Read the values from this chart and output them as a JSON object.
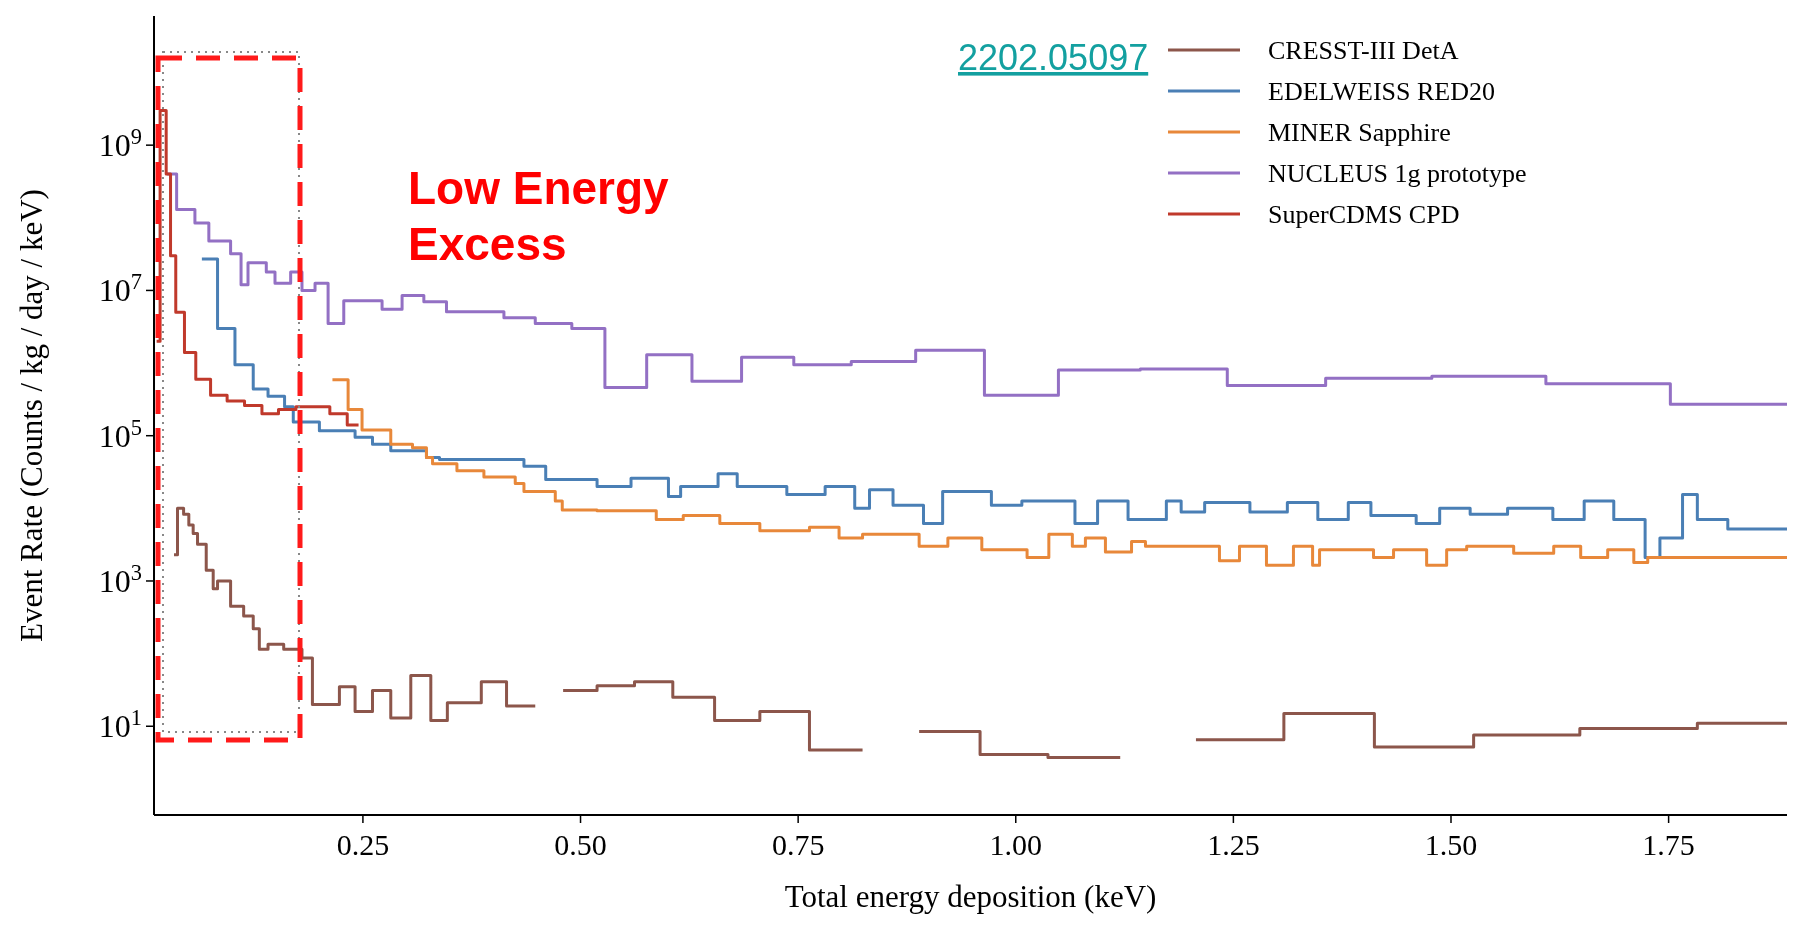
{
  "chart_data": {
    "type": "step",
    "xlabel": "Total energy deposition (keV)",
    "ylabel": "Event Rate (Counts / kg / day / keV)",
    "log": "y",
    "xlim": [
      0.01,
      1.886
    ],
    "ylim": [
      0.6,
      60000000000.0
    ],
    "xticks": [
      {
        "value": 0.25,
        "label": "0.25"
      },
      {
        "value": 0.5,
        "label": "0.50"
      },
      {
        "value": 0.75,
        "label": "0.75"
      },
      {
        "value": 1.0,
        "label": "1.00"
      },
      {
        "value": 1.25,
        "label": "1.25"
      },
      {
        "value": 1.5,
        "label": "1.50"
      },
      {
        "value": 1.75,
        "label": "1.75"
      }
    ],
    "yticks": [
      {
        "value": 10,
        "label": "10$^{1}$"
      },
      {
        "value": 1000,
        "label": "10$^{3}$"
      },
      {
        "value": 100000,
        "label": "10$^{5}$"
      },
      {
        "value": 10000000,
        "label": "10$^{7}$"
      },
      {
        "value": 1000000000,
        "label": "10$^{9}$"
      }
    ],
    "grid": false,
    "legend": "top right",
    "line_style": "solid",
    "marker": "none",
    "annotations": [
      "2202.05097",
      "Low Energy Excess"
    ],
    "series": [
      {
        "name": "CRESST-III DetA",
        "color": "#8c564b",
        "x": [
          0.033,
          0.037,
          0.044,
          0.05,
          0.055,
          0.06,
          0.07,
          0.078,
          0.083,
          0.098,
          0.113,
          0.124,
          0.131,
          0.141,
          0.159,
          0.18,
          0.192,
          0.223,
          0.241,
          0.261,
          0.282,
          0.305,
          0.328,
          0.347,
          0.386,
          0.415,
          0.448,
          0.48,
          0.519,
          0.562,
          0.606,
          0.654,
          0.706,
          0.763,
          0.824,
          0.889,
          0.959,
          1.037,
          1.12,
          1.207,
          1.308,
          1.412,
          1.526,
          1.648,
          1.783,
          1.886
        ],
        "values": [
          2300,
          10000,
          8300,
          5900,
          4500,
          3200,
          1400,
          780,
          1000,
          450,
          330,
          220,
          115,
          135,
          115,
          87,
          20,
          35,
          16,
          31,
          13,
          50,
          12,
          21,
          41,
          19,
          null,
          31,
          36,
          41,
          25,
          12,
          16,
          4.7,
          null,
          8.5,
          4.1,
          3.7,
          null,
          6.5,
          15,
          5.2,
          7.6,
          9.3,
          11,
          11
        ]
      },
      {
        "name": "EDELWEISS RED20",
        "color": "#4a7fb5",
        "x": [
          0.065,
          0.083,
          0.103,
          0.124,
          0.141,
          0.16,
          0.17,
          0.2,
          0.241,
          0.261,
          0.282,
          0.323,
          0.338,
          0.435,
          0.46,
          0.519,
          0.558,
          0.601,
          0.615,
          0.658,
          0.68,
          0.737,
          0.781,
          0.815,
          0.832,
          0.859,
          0.894,
          0.916,
          0.972,
          1.007,
          1.068,
          1.094,
          1.129,
          1.173,
          1.19,
          1.217,
          1.269,
          1.312,
          1.347,
          1.382,
          1.408,
          1.46,
          1.487,
          1.522,
          1.565,
          1.617,
          1.653,
          1.687,
          1.723,
          1.74,
          1.766,
          1.783,
          1.818,
          1.886
        ],
        "values": [
          27000000,
          3000000,
          950000,
          440000,
          350000,
          250000,
          155000,
          117000,
          95000,
          76000,
          62000,
          50000,
          47000,
          38000,
          25000,
          20000,
          26000,
          14500,
          20000,
          30000,
          20000,
          15500,
          20000,
          10000,
          18000,
          11000,
          6200,
          17000,
          11000,
          12600,
          6200,
          12600,
          7000,
          12600,
          8900,
          12000,
          8900,
          12000,
          7000,
          12000,
          8000,
          6200,
          10000,
          8300,
          10000,
          7000,
          12600,
          7000,
          2100,
          3900,
          15500,
          7000,
          5200,
          5200
        ]
      },
      {
        "name": "MINER Sapphire",
        "color": "#e8883a",
        "x": [
          0.215,
          0.233,
          0.249,
          0.282,
          0.307,
          0.323,
          0.33,
          0.358,
          0.389,
          0.425,
          0.435,
          0.471,
          0.479,
          0.519,
          0.587,
          0.618,
          0.66,
          0.706,
          0.763,
          0.797,
          0.824,
          0.889,
          0.922,
          0.961,
          1.013,
          1.038,
          1.065,
          1.08,
          1.103,
          1.133,
          1.149,
          1.178,
          1.234,
          1.257,
          1.288,
          1.319,
          1.341,
          1.349,
          1.411,
          1.434,
          1.472,
          1.495,
          1.518,
          1.572,
          1.618,
          1.649,
          1.68,
          1.71,
          1.726,
          1.886
        ],
        "values": [
          590000,
          230000,
          120000,
          76000,
          68000,
          50000,
          41000,
          33000,
          27000,
          22000,
          17000,
          12600,
          9500,
          9300,
          7000,
          8000,
          6200,
          4900,
          5500,
          3900,
          4400,
          3000,
          3900,
          2700,
          2100,
          4400,
          3000,
          3900,
          2500,
          3500,
          3000,
          3000,
          1900,
          3000,
          1650,
          3000,
          1650,
          2700,
          2100,
          2700,
          1650,
          2700,
          3000,
          2400,
          3000,
          2100,
          2700,
          1800,
          2100,
          2100
        ]
      },
      {
        "name": "NUCLEUS 1g prototype",
        "color": "#9370c4",
        "x": [
          0.025,
          0.036,
          0.057,
          0.073,
          0.098,
          0.11,
          0.118,
          0.139,
          0.149,
          0.167,
          0.18,
          0.195,
          0.21,
          0.228,
          0.272,
          0.295,
          0.32,
          0.346,
          0.412,
          0.448,
          0.49,
          0.528,
          0.576,
          0.628,
          0.685,
          0.745,
          0.811,
          0.885,
          0.964,
          1.049,
          1.143,
          1.243,
          1.356,
          1.478,
          1.609,
          1.752,
          1.886
        ],
        "values": [
          400000000,
          130000000,
          85000000,
          48000000,
          32000000,
          12000000,
          24000000,
          18000000,
          12600000,
          18000000,
          10000000,
          12600000,
          3500000,
          7200000,
          5500000,
          8500000,
          7000000,
          5100000,
          4200000,
          3500000,
          3000000,
          460000,
          1300000,
          560000,
          1200000,
          950000,
          1050000,
          1500000,
          360000,
          800000,
          830000,
          490000,
          620000,
          660000,
          520000,
          270000,
          270000
        ]
      },
      {
        "name": "SuperCDMS CPD",
        "color": "#c0392b",
        "x": [
          0.013,
          0.017,
          0.024,
          0.029,
          0.035,
          0.045,
          0.058,
          0.075,
          0.094,
          0.114,
          0.134,
          0.153,
          0.173,
          0.212,
          0.232,
          0.245
        ],
        "values": [
          2000000,
          3000000000,
          400000000,
          30000000,
          5000000,
          1400000,
          600000,
          360000,
          300000,
          260000,
          200000,
          230000,
          250000,
          200000,
          140000,
          140000
        ]
      }
    ]
  }
}
